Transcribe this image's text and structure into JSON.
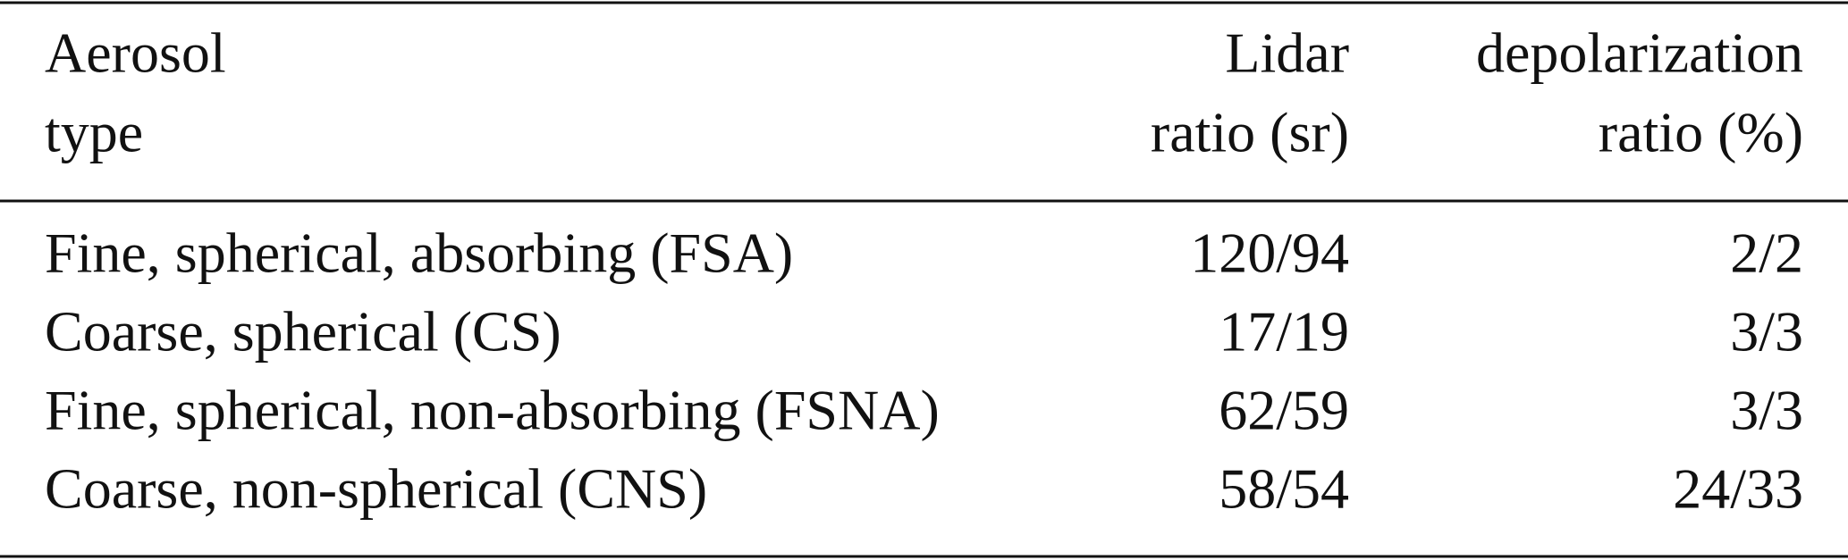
{
  "table": {
    "header": [
      [
        "Aerosol",
        "type"
      ],
      [
        "Lidar",
        "ratio (sr)"
      ],
      [
        "depolarization",
        "ratio (%)"
      ]
    ],
    "rows": [
      [
        "Fine, spherical, absorbing (FSA)",
        "120/94",
        "2/2"
      ],
      [
        "Coarse, spherical (CS)",
        "17/19",
        "3/3"
      ],
      [
        "Fine, spherical, non-absorbing (FSNA)",
        "62/59",
        "3/3"
      ],
      [
        "Coarse, non-spherical (CNS)",
        "58/54",
        "24/33"
      ]
    ]
  }
}
